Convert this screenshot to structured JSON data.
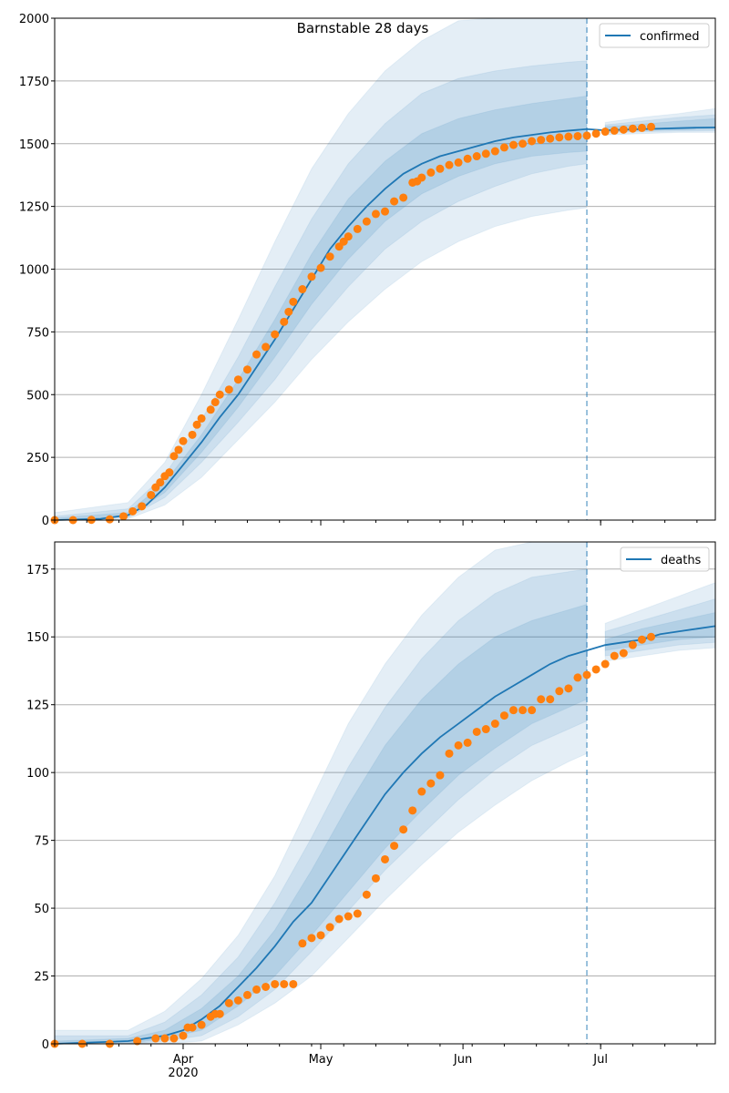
{
  "chart_data": [
    {
      "type": "line",
      "title": "Barnstable 28 days",
      "xlabel": "",
      "ylabel": "",
      "x_unit": "days since Mar 4 2020",
      "xlim": [
        0,
        144
      ],
      "ylim": [
        0,
        2000
      ],
      "yticks": [
        0,
        250,
        500,
        750,
        1000,
        1250,
        1500,
        1750,
        2000
      ],
      "ytick_labels": [
        "0",
        "250",
        "500",
        "750",
        "1000",
        "1250",
        "1500",
        "1750",
        "2000"
      ],
      "grid": "horizontal",
      "legend": {
        "entries": [
          "confirmed"
        ],
        "placement": "top-right"
      },
      "forecast_start_day": 116,
      "series": [
        {
          "name": "confirmed",
          "kind": "model-line",
          "color": "#1f77b4",
          "x": [
            0,
            10,
            16,
            20,
            24,
            28,
            32,
            36,
            40,
            44,
            48,
            52,
            56,
            60,
            64,
            68,
            72,
            76,
            80,
            84,
            88,
            92,
            96,
            100,
            104,
            108,
            112,
            116,
            120,
            124,
            128,
            132,
            136,
            140,
            144
          ],
          "y": [
            0,
            5,
            20,
            60,
            130,
            220,
            310,
            410,
            500,
            610,
            720,
            840,
            960,
            1080,
            1170,
            1250,
            1320,
            1380,
            1420,
            1450,
            1470,
            1490,
            1510,
            1525,
            1535,
            1545,
            1552,
            1558,
            1553,
            1556,
            1558,
            1560,
            1562,
            1564,
            1565
          ]
        },
        {
          "name": "confirmed observed",
          "kind": "scatter",
          "color": "#ff7f0e",
          "x": [
            0,
            4,
            8,
            12,
            15,
            17,
            19,
            21,
            22,
            23,
            24,
            25,
            26,
            27,
            28,
            30,
            31,
            32,
            34,
            35,
            36,
            38,
            40,
            42,
            44,
            46,
            48,
            50,
            51,
            52,
            54,
            56,
            58,
            60,
            62,
            63,
            64,
            66,
            68,
            70,
            72,
            74,
            76,
            78,
            79,
            80,
            82,
            84,
            86,
            88,
            90,
            92,
            94,
            96,
            98,
            100,
            102,
            104,
            106,
            108,
            110,
            112,
            114,
            116,
            118,
            120,
            122,
            124,
            126,
            128,
            130
          ],
          "y": [
            0,
            0,
            1,
            3,
            15,
            35,
            55,
            100,
            130,
            150,
            175,
            190,
            255,
            280,
            315,
            340,
            380,
            405,
            440,
            470,
            500,
            520,
            560,
            600,
            660,
            690,
            740,
            790,
            830,
            870,
            920,
            970,
            1005,
            1050,
            1090,
            1110,
            1130,
            1160,
            1190,
            1220,
            1230,
            1270,
            1285,
            1345,
            1350,
            1365,
            1385,
            1400,
            1415,
            1425,
            1440,
            1450,
            1460,
            1470,
            1485,
            1495,
            1500,
            1510,
            1515,
            1520,
            1525,
            1528,
            1530,
            1532,
            1540,
            1548,
            1552,
            1556,
            1560,
            1563,
            1567
          ]
        }
      ],
      "bands": {
        "color": "#1f77b4",
        "x": [
          0,
          16,
          24,
          32,
          40,
          48,
          56,
          64,
          72,
          80,
          88,
          96,
          104,
          112,
          116,
          120,
          128,
          136,
          144
        ],
        "outer_low": [
          0,
          5,
          60,
          170,
          320,
          470,
          640,
          790,
          920,
          1030,
          1110,
          1170,
          1210,
          1235,
          1245,
          1535,
          1540,
          1545,
          1545
        ],
        "outer_high": [
          30,
          70,
          230,
          500,
          800,
          1110,
          1400,
          1620,
          1790,
          1910,
          1990,
          2000,
          2000,
          2000,
          2000,
          1585,
          1605,
          1620,
          1640
        ],
        "mid_low": [
          0,
          10,
          90,
          230,
          390,
          560,
          760,
          930,
          1080,
          1190,
          1270,
          1330,
          1380,
          1410,
          1420,
          1545,
          1548,
          1550,
          1552
        ],
        "mid_high": [
          15,
          45,
          180,
          400,
          650,
          930,
          1200,
          1420,
          1580,
          1700,
          1760,
          1790,
          1810,
          1825,
          1830,
          1575,
          1590,
          1605,
          1615
        ],
        "inner_low": [
          0,
          15,
          110,
          270,
          450,
          650,
          860,
          1040,
          1190,
          1300,
          1370,
          1420,
          1450,
          1465,
          1470,
          1548,
          1552,
          1556,
          1558
        ],
        "inner_high": [
          8,
          30,
          150,
          340,
          560,
          800,
          1060,
          1280,
          1430,
          1540,
          1600,
          1635,
          1660,
          1680,
          1690,
          1568,
          1578,
          1590,
          1600
        ]
      }
    },
    {
      "type": "line",
      "title": "",
      "xlabel": "",
      "ylabel": "",
      "x_unit": "days since Mar 4 2020",
      "xlim": [
        0,
        144
      ],
      "ylim": [
        0,
        185
      ],
      "yticks": [
        0,
        25,
        50,
        75,
        100,
        125,
        150,
        175
      ],
      "ytick_labels": [
        "0",
        "25",
        "50",
        "75",
        "100",
        "125",
        "150",
        "175"
      ],
      "xticks": [
        28,
        58,
        89,
        119
      ],
      "xtick_labels": [
        "Apr\n2020",
        "May",
        "Jun",
        "Jul"
      ],
      "xtick_label_lines": [
        [
          "Apr",
          "2020"
        ],
        [
          "May"
        ],
        [
          "Jun"
        ],
        [
          "Jul"
        ]
      ],
      "grid": "horizontal",
      "legend": {
        "entries": [
          "deaths"
        ],
        "placement": "top-right"
      },
      "forecast_start_day": 116,
      "series": [
        {
          "name": "deaths",
          "kind": "model-line",
          "color": "#1f77b4",
          "x": [
            0,
            16,
            20,
            24,
            28,
            32,
            36,
            40,
            44,
            48,
            52,
            56,
            60,
            64,
            68,
            72,
            76,
            80,
            84,
            88,
            92,
            96,
            100,
            104,
            108,
            112,
            116,
            120,
            124,
            128,
            132,
            136,
            140,
            144
          ],
          "y": [
            0,
            1,
            2,
            3,
            5,
            9,
            14,
            21,
            28,
            36,
            45,
            52,
            62,
            72,
            82,
            92,
            100,
            107,
            113,
            118,
            123,
            128,
            132,
            136,
            140,
            143,
            145,
            147,
            148,
            149,
            151,
            152,
            153,
            154
          ]
        },
        {
          "name": "deaths observed",
          "kind": "scatter",
          "color": "#ff7f0e",
          "x": [
            0,
            6,
            12,
            18,
            22,
            24,
            26,
            28,
            29,
            30,
            32,
            34,
            35,
            36,
            38,
            40,
            42,
            44,
            46,
            48,
            50,
            52,
            54,
            56,
            58,
            60,
            62,
            64,
            66,
            68,
            70,
            72,
            74,
            76,
            78,
            80,
            82,
            84,
            86,
            88,
            90,
            92,
            94,
            96,
            98,
            100,
            102,
            104,
            106,
            108,
            110,
            112,
            114,
            116,
            118,
            120,
            122,
            124,
            126,
            128,
            130
          ],
          "y": [
            0,
            0,
            0,
            1,
            2,
            2,
            2,
            3,
            6,
            6,
            7,
            10,
            11,
            11,
            15,
            16,
            18,
            20,
            21,
            22,
            22,
            22,
            37,
            39,
            40,
            43,
            46,
            47,
            48,
            55,
            61,
            68,
            73,
            79,
            86,
            93,
            96,
            99,
            107,
            110,
            111,
            115,
            116,
            118,
            121,
            123,
            123,
            123,
            127,
            127,
            130,
            131,
            135,
            136,
            138,
            140,
            143,
            144,
            147,
            149,
            150
          ]
        }
      ],
      "bands": {
        "color": "#1f77b4",
        "x": [
          0,
          16,
          24,
          32,
          40,
          48,
          56,
          64,
          72,
          80,
          88,
          96,
          104,
          112,
          116,
          120,
          128,
          136,
          144
        ],
        "outer_low": [
          0,
          0,
          0,
          1,
          7,
          15,
          25,
          39,
          53,
          66,
          78,
          88,
          97,
          104,
          107,
          141,
          143,
          145,
          146
        ],
        "outer_high": [
          5,
          5,
          12,
          24,
          40,
          62,
          90,
          118,
          140,
          158,
          172,
          182,
          185,
          185,
          185,
          155,
          160,
          165,
          170
        ],
        "mid_low": [
          0,
          0,
          1,
          3,
          10,
          20,
          34,
          49,
          64,
          77,
          90,
          101,
          110,
          116,
          119,
          143,
          145,
          147,
          148
        ],
        "mid_high": [
          3,
          3,
          8,
          18,
          32,
          52,
          76,
          102,
          124,
          142,
          156,
          166,
          172,
          174,
          175,
          152,
          156,
          160,
          164
        ],
        "inner_low": [
          0,
          0,
          2,
          5,
          14,
          25,
          40,
          56,
          72,
          86,
          99,
          109,
          118,
          124,
          127,
          145,
          147,
          149,
          150
        ],
        "inner_high": [
          1,
          2,
          5,
          13,
          25,
          42,
          64,
          88,
          110,
          127,
          140,
          150,
          156,
          160,
          162,
          149,
          153,
          156,
          159
        ]
      }
    }
  ]
}
